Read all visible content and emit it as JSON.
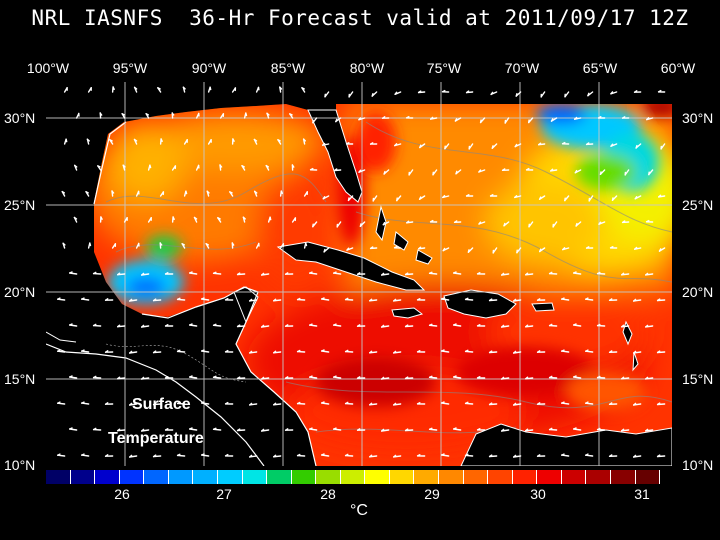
{
  "title": "NRL IASNFS  36-Hr Forecast valid at 2011/09/17 12Z",
  "lon_labels": [
    "100°W",
    "95°W",
    "90°W",
    "85°W",
    "80°W",
    "75°W",
    "70°W",
    "65°W",
    "60°W"
  ],
  "lat_labels": [
    "30°N",
    "25°N",
    "20°N",
    "15°N",
    "10°N"
  ],
  "annotation": {
    "line1": "Surface",
    "line2": "Temperature"
  },
  "colorbar": {
    "ticks": [
      "26",
      "27",
      "28",
      "29",
      "30",
      "31"
    ],
    "unit": "°C",
    "colors": [
      "#000066",
      "#00008b",
      "#0000cd",
      "#0033ff",
      "#0066ff",
      "#0099ff",
      "#00b0ff",
      "#00ccff",
      "#00e5e5",
      "#00cc66",
      "#33cc00",
      "#99dd00",
      "#ccee00",
      "#ffff00",
      "#ffd700",
      "#ffaa00",
      "#ff8800",
      "#ff6600",
      "#ff4400",
      "#ff2200",
      "#ee0000",
      "#cc0000",
      "#aa0000",
      "#880000",
      "#660000"
    ]
  }
}
